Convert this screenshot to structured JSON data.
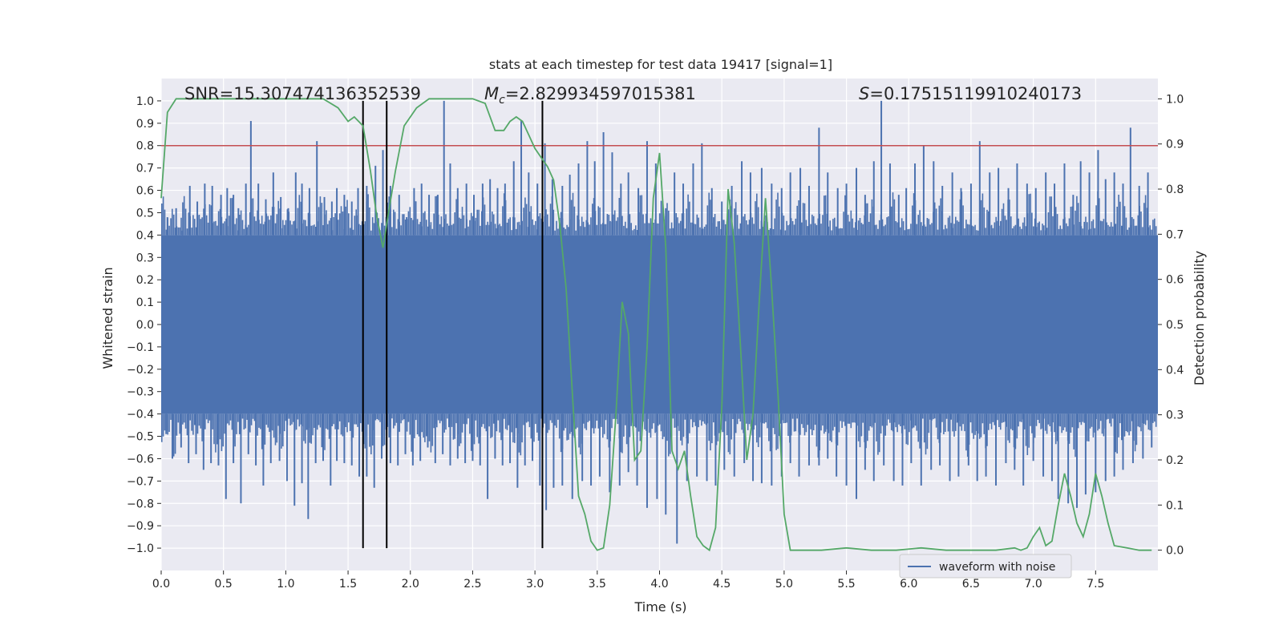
{
  "chart_data": {
    "type": "line",
    "title": "stats at each timestep for test data 19417 [signal=1]",
    "xlabel": "Time (s)",
    "ylabel": "Whitened strain",
    "y2label": "Detection probability",
    "xlim": [
      0.0,
      8.0
    ],
    "ylim": [
      -1.1,
      1.1
    ],
    "y2lim": [
      -0.045,
      1.045
    ],
    "xticks": [
      "0.0",
      "0.5",
      "1.0",
      "1.5",
      "2.0",
      "2.5",
      "3.0",
      "3.5",
      "4.0",
      "4.5",
      "5.0",
      "5.5",
      "6.0",
      "6.5",
      "7.0",
      "7.5"
    ],
    "yticks": [
      "1.0",
      "0.9",
      "0.8",
      "0.7",
      "0.6",
      "0.5",
      "0.4",
      "0.3",
      "0.2",
      "0.1",
      "0.0",
      "−0.1",
      "−0.2",
      "−0.3",
      "−0.4",
      "−0.5",
      "−0.6",
      "−0.7",
      "−0.8",
      "−0.9",
      "−1.0"
    ],
    "y2ticks": [
      "1.0",
      "0.9",
      "0.8",
      "0.7",
      "0.6",
      "0.5",
      "0.4",
      "0.3",
      "0.2",
      "0.1",
      "0.0"
    ],
    "grid": true,
    "legend_position": "lower-right",
    "annotations": {
      "snr": "SNR=15.307474136352539",
      "mc_symbol": "M",
      "mc_sub": "c",
      "mc_value": "=2.829934597015381",
      "s_symbol": "S",
      "s_value": "=0.17515119910240173"
    },
    "threshold_y": 0.8,
    "vertical_lines_x": [
      1.62,
      1.81,
      3.06
    ],
    "series": [
      {
        "name": "waveform with noise",
        "color": "#4c72b0",
        "envelope_core": 0.4,
        "peaks": [
          [
            0.05,
            0.48
          ],
          [
            0.12,
            0.52
          ],
          [
            0.17,
            0.42
          ],
          [
            0.23,
            0.62
          ],
          [
            0.29,
            0.55
          ],
          [
            0.35,
            0.63
          ],
          [
            0.41,
            0.62
          ],
          [
            0.48,
            0.58
          ],
          [
            0.53,
            0.61
          ],
          [
            0.58,
            0.58
          ],
          [
            0.62,
            0.52
          ],
          [
            0.68,
            0.63
          ],
          [
            0.72,
            0.91
          ],
          [
            0.78,
            0.63
          ],
          [
            0.84,
            0.56
          ],
          [
            0.9,
            0.68
          ],
          [
            0.96,
            0.57
          ],
          [
            1.02,
            0.52
          ],
          [
            1.08,
            0.68
          ],
          [
            1.13,
            0.63
          ],
          [
            1.19,
            0.61
          ],
          [
            1.25,
            0.82
          ],
          [
            1.31,
            0.57
          ],
          [
            1.37,
            0.55
          ],
          [
            1.41,
            0.61
          ],
          [
            1.47,
            0.58
          ],
          [
            1.53,
            0.55
          ],
          [
            1.58,
            0.61
          ],
          [
            1.65,
            0.62
          ],
          [
            1.72,
            0.71
          ],
          [
            1.78,
            0.78
          ],
          [
            1.84,
            0.62
          ],
          [
            1.91,
            0.58
          ],
          [
            1.97,
            0.48
          ],
          [
            2.03,
            0.61
          ],
          [
            2.09,
            0.63
          ],
          [
            2.15,
            0.58
          ],
          [
            2.22,
            0.58
          ],
          [
            2.27,
            1.0
          ],
          [
            2.32,
            0.72
          ],
          [
            2.38,
            0.61
          ],
          [
            2.45,
            0.63
          ],
          [
            2.51,
            0.58
          ],
          [
            2.58,
            0.63
          ],
          [
            2.64,
            0.65
          ],
          [
            2.7,
            0.61
          ],
          [
            2.76,
            0.63
          ],
          [
            2.83,
            0.73
          ],
          [
            2.89,
            0.91
          ],
          [
            2.95,
            0.68
          ],
          [
            3.02,
            0.63
          ],
          [
            3.08,
            0.81
          ],
          [
            3.14,
            0.65
          ],
          [
            3.22,
            0.62
          ],
          [
            3.28,
            0.67
          ],
          [
            3.35,
            0.72
          ],
          [
            3.42,
            0.82
          ],
          [
            3.48,
            0.73
          ],
          [
            3.55,
            0.86
          ],
          [
            3.62,
            0.77
          ],
          [
            3.69,
            0.63
          ],
          [
            3.75,
            0.68
          ],
          [
            3.83,
            0.61
          ],
          [
            3.9,
            0.82
          ],
          [
            3.97,
            0.72
          ],
          [
            4.05,
            0.52
          ],
          [
            4.12,
            0.68
          ],
          [
            4.19,
            0.63
          ],
          [
            4.27,
            0.72
          ],
          [
            4.34,
            0.81
          ],
          [
            4.42,
            0.61
          ],
          [
            4.5,
            0.55
          ],
          [
            4.58,
            0.62
          ],
          [
            4.66,
            0.73
          ],
          [
            4.73,
            0.68
          ],
          [
            4.82,
            0.7
          ],
          [
            4.9,
            0.63
          ],
          [
            4.98,
            0.61
          ],
          [
            5.05,
            0.68
          ],
          [
            5.13,
            0.7
          ],
          [
            5.2,
            0.62
          ],
          [
            5.28,
            0.88
          ],
          [
            5.35,
            0.68
          ],
          [
            5.43,
            0.61
          ],
          [
            5.5,
            0.63
          ],
          [
            5.58,
            0.7
          ],
          [
            5.65,
            0.58
          ],
          [
            5.72,
            0.73
          ],
          [
            5.78,
            1.0
          ],
          [
            5.85,
            0.72
          ],
          [
            5.92,
            0.58
          ],
          [
            5.98,
            0.61
          ],
          [
            6.05,
            0.72
          ],
          [
            6.12,
            0.8
          ],
          [
            6.2,
            0.73
          ],
          [
            6.27,
            0.62
          ],
          [
            6.35,
            0.68
          ],
          [
            6.42,
            0.61
          ],
          [
            6.5,
            0.63
          ],
          [
            6.57,
            0.82
          ],
          [
            6.65,
            0.68
          ],
          [
            6.72,
            0.7
          ],
          [
            6.8,
            0.61
          ],
          [
            6.87,
            0.72
          ],
          [
            6.95,
            0.63
          ],
          [
            7.02,
            0.61
          ],
          [
            7.1,
            0.68
          ],
          [
            7.17,
            0.63
          ],
          [
            7.25,
            0.72
          ],
          [
            7.32,
            0.58
          ],
          [
            7.38,
            0.73
          ],
          [
            7.45,
            0.68
          ],
          [
            7.52,
            0.78
          ],
          [
            7.58,
            0.65
          ],
          [
            7.65,
            0.68
          ],
          [
            7.72,
            0.63
          ],
          [
            7.78,
            0.88
          ],
          [
            7.85,
            0.62
          ],
          [
            7.92,
            0.68
          ]
        ],
        "troughs": [
          [
            0.04,
            -0.49
          ],
          [
            0.09,
            -0.6
          ],
          [
            0.16,
            -0.55
          ],
          [
            0.22,
            -0.62
          ],
          [
            0.28,
            -0.58
          ],
          [
            0.34,
            -0.65
          ],
          [
            0.4,
            -0.62
          ],
          [
            0.46,
            -0.63
          ],
          [
            0.52,
            -0.78
          ],
          [
            0.58,
            -0.62
          ],
          [
            0.64,
            -0.8
          ],
          [
            0.7,
            -0.58
          ],
          [
            0.76,
            -0.63
          ],
          [
            0.82,
            -0.72
          ],
          [
            0.88,
            -0.62
          ],
          [
            0.95,
            -0.61
          ],
          [
            1.01,
            -0.7
          ],
          [
            1.07,
            -0.81
          ],
          [
            1.13,
            -0.71
          ],
          [
            1.18,
            -0.87
          ],
          [
            1.24,
            -0.62
          ],
          [
            1.3,
            -0.61
          ],
          [
            1.36,
            -0.72
          ],
          [
            1.41,
            -0.61
          ],
          [
            1.47,
            -0.62
          ],
          [
            1.53,
            -0.63
          ],
          [
            1.59,
            -0.68
          ],
          [
            1.65,
            -0.68
          ],
          [
            1.71,
            -0.73
          ],
          [
            1.77,
            -0.6
          ],
          [
            1.84,
            -0.62
          ],
          [
            1.9,
            -0.63
          ],
          [
            1.96,
            -0.58
          ],
          [
            2.02,
            -0.63
          ],
          [
            2.08,
            -0.61
          ],
          [
            2.14,
            -0.55
          ],
          [
            2.2,
            -0.62
          ],
          [
            2.26,
            -0.58
          ],
          [
            2.32,
            -0.63
          ],
          [
            2.38,
            -0.6
          ],
          [
            2.44,
            -0.62
          ],
          [
            2.5,
            -0.61
          ],
          [
            2.56,
            -0.63
          ],
          [
            2.62,
            -0.78
          ],
          [
            2.68,
            -0.6
          ],
          [
            2.74,
            -0.63
          ],
          [
            2.8,
            -0.62
          ],
          [
            2.86,
            -0.73
          ],
          [
            2.92,
            -0.63
          ],
          [
            2.98,
            -0.61
          ],
          [
            3.04,
            -0.72
          ],
          [
            3.09,
            -0.83
          ],
          [
            3.15,
            -0.73
          ],
          [
            3.22,
            -0.72
          ],
          [
            3.3,
            -0.78
          ],
          [
            3.38,
            -0.7
          ],
          [
            3.45,
            -0.72
          ],
          [
            3.52,
            -0.68
          ],
          [
            3.6,
            -0.75
          ],
          [
            3.68,
            -0.72
          ],
          [
            3.75,
            -0.66
          ],
          [
            3.82,
            -0.72
          ],
          [
            3.9,
            -0.82
          ],
          [
            3.98,
            -0.78
          ],
          [
            4.05,
            -0.85
          ],
          [
            4.14,
            -0.98
          ],
          [
            4.22,
            -0.7
          ],
          [
            4.3,
            -0.68
          ],
          [
            4.38,
            -0.7
          ],
          [
            4.45,
            -0.72
          ],
          [
            4.52,
            -0.65
          ],
          [
            4.6,
            -0.68
          ],
          [
            4.68,
            -0.62
          ],
          [
            4.75,
            -0.7
          ],
          [
            4.82,
            -0.71
          ],
          [
            4.9,
            -0.72
          ],
          [
            4.98,
            -0.68
          ],
          [
            5.05,
            -0.62
          ],
          [
            5.12,
            -0.68
          ],
          [
            5.2,
            -0.63
          ],
          [
            5.28,
            -0.63
          ],
          [
            5.35,
            -0.6
          ],
          [
            5.42,
            -0.68
          ],
          [
            5.5,
            -0.72
          ],
          [
            5.58,
            -0.78
          ],
          [
            5.65,
            -0.65
          ],
          [
            5.72,
            -0.7
          ],
          [
            5.8,
            -0.63
          ],
          [
            5.88,
            -0.7
          ],
          [
            5.95,
            -0.72
          ],
          [
            6.02,
            -0.62
          ],
          [
            6.1,
            -0.72
          ],
          [
            6.18,
            -0.65
          ],
          [
            6.25,
            -0.63
          ],
          [
            6.33,
            -0.7
          ],
          [
            6.4,
            -0.68
          ],
          [
            6.48,
            -0.63
          ],
          [
            6.55,
            -0.7
          ],
          [
            6.62,
            -0.68
          ],
          [
            6.7,
            -0.72
          ],
          [
            6.78,
            -0.62
          ],
          [
            6.85,
            -0.65
          ],
          [
            6.92,
            -0.72
          ],
          [
            7.0,
            -0.61
          ],
          [
            7.08,
            -0.68
          ],
          [
            7.15,
            -0.7
          ],
          [
            7.2,
            -0.78
          ],
          [
            7.28,
            -0.8
          ],
          [
            7.35,
            -0.82
          ],
          [
            7.42,
            -0.76
          ],
          [
            7.5,
            -0.75
          ],
          [
            7.58,
            -0.7
          ],
          [
            7.65,
            -0.68
          ],
          [
            7.72,
            -0.65
          ],
          [
            7.8,
            -0.62
          ],
          [
            7.88,
            -0.6
          ],
          [
            7.95,
            -0.55
          ]
        ]
      },
      {
        "name": "detection probability",
        "color": "#55a868",
        "axis": "right",
        "x": [
          0.0,
          0.05,
          0.12,
          0.25,
          0.5,
          1.0,
          1.3,
          1.42,
          1.5,
          1.55,
          1.62,
          1.68,
          1.73,
          1.78,
          1.82,
          1.88,
          1.95,
          2.05,
          2.15,
          2.3,
          2.5,
          2.6,
          2.68,
          2.75,
          2.8,
          2.85,
          2.9,
          2.95,
          3.0,
          3.05,
          3.1,
          3.15,
          3.2,
          3.25,
          3.3,
          3.35,
          3.4,
          3.45,
          3.5,
          3.55,
          3.6,
          3.65,
          3.7,
          3.75,
          3.8,
          3.85,
          3.9,
          3.95,
          4.0,
          4.05,
          4.1,
          4.15,
          4.2,
          4.25,
          4.3,
          4.35,
          4.4,
          4.45,
          4.5,
          4.55,
          4.6,
          4.65,
          4.7,
          4.75,
          4.8,
          4.85,
          4.9,
          4.95,
          5.0,
          5.05,
          5.1,
          5.2,
          5.3,
          5.5,
          5.7,
          5.9,
          6.1,
          6.3,
          6.5,
          6.7,
          6.85,
          6.9,
          6.95,
          7.0,
          7.05,
          7.1,
          7.15,
          7.2,
          7.25,
          7.3,
          7.35,
          7.4,
          7.45,
          7.5,
          7.55,
          7.6,
          7.65,
          7.75,
          7.85,
          7.95
        ],
        "y": [
          0.78,
          0.97,
          1.0,
          1.0,
          1.0,
          1.0,
          1.0,
          0.98,
          0.95,
          0.96,
          0.94,
          0.84,
          0.74,
          0.67,
          0.74,
          0.84,
          0.94,
          0.98,
          1.0,
          1.0,
          1.0,
          0.99,
          0.93,
          0.93,
          0.95,
          0.96,
          0.95,
          0.92,
          0.89,
          0.87,
          0.85,
          0.82,
          0.72,
          0.58,
          0.35,
          0.12,
          0.08,
          0.02,
          0.0,
          0.005,
          0.1,
          0.3,
          0.55,
          0.48,
          0.2,
          0.22,
          0.45,
          0.78,
          0.88,
          0.67,
          0.22,
          0.18,
          0.22,
          0.12,
          0.03,
          0.01,
          0.0,
          0.05,
          0.32,
          0.8,
          0.68,
          0.45,
          0.2,
          0.3,
          0.55,
          0.78,
          0.58,
          0.35,
          0.08,
          0.0,
          0.0,
          0.0,
          0.0,
          0.005,
          0.0,
          0.0,
          0.005,
          0.0,
          0.0,
          0.0,
          0.005,
          0.0,
          0.005,
          0.03,
          0.05,
          0.01,
          0.02,
          0.1,
          0.17,
          0.12,
          0.06,
          0.03,
          0.08,
          0.17,
          0.12,
          0.06,
          0.01,
          0.005,
          0.0,
          0.0
        ]
      }
    ]
  }
}
